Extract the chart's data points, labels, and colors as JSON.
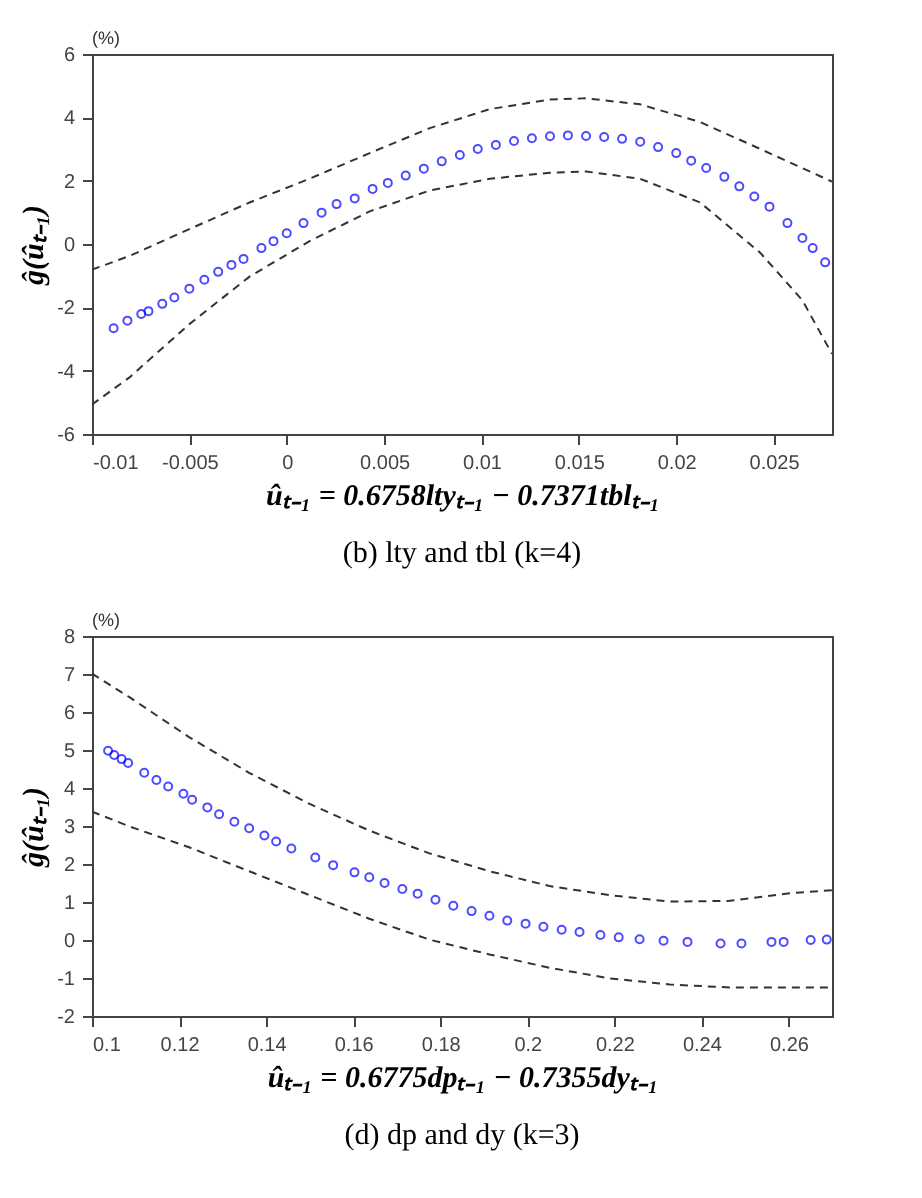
{
  "chart_data": [
    {
      "type": "scatter",
      "title": "(b) lty and tbl (k=4)",
      "xlabel": "ûₜ₋₁ = 0.6758ltyₜ₋₁ − 0.7371tblₜ₋₁",
      "ylabel": "ĝ(ûₜ₋₁)",
      "annotations": [
        "(%)"
      ],
      "xlim": [
        -0.01,
        0.028
      ],
      "xticks": [
        -0.01,
        -0.005,
        0,
        0.005,
        0.01,
        0.015,
        0.02,
        0.025
      ],
      "ylim": [
        -6,
        6
      ],
      "yticks": [
        -6,
        -4,
        -2,
        0,
        2,
        4,
        6
      ],
      "grid": false,
      "legend": false,
      "series": [
        {
          "marker": "circle",
          "color": "#0000ff",
          "x": [
            -0.00889,
            -0.00818,
            -0.00747,
            -0.0071,
            -0.00639,
            -0.00577,
            -0.005,
            -0.00423,
            -0.00352,
            -0.00284,
            -0.00222,
            -0.0013,
            -0.00068,
            0,
            0.00086,
            0.00179,
            0.00256,
            0.00349,
            0.00441,
            0.00519,
            0.00611,
            0.00704,
            0.00796,
            0.00889,
            0.00981,
            0.01074,
            0.01167,
            0.01259,
            0.01352,
            0.01444,
            0.01537,
            0.0163,
            0.01722,
            0.01815,
            0.01907,
            0.02,
            0.02077,
            0.02154,
            0.02247,
            0.02324,
            0.02401,
            0.02479,
            0.02571,
            0.02648,
            0.02701,
            0.02765
          ],
          "values": [
            -2.66,
            -2.42,
            -2.21,
            -2.12,
            -1.89,
            -1.69,
            -1.41,
            -1.13,
            -0.88,
            -0.66,
            -0.47,
            -0.13,
            0.09,
            0.34,
            0.66,
            0.99,
            1.26,
            1.44,
            1.74,
            1.93,
            2.16,
            2.38,
            2.61,
            2.81,
            3.0,
            3.13,
            3.25,
            3.34,
            3.4,
            3.43,
            3.41,
            3.38,
            3.32,
            3.23,
            3.06,
            2.87,
            2.63,
            2.4,
            2.12,
            1.82,
            1.5,
            1.18,
            0.66,
            0.19,
            -0.13,
            -0.58
          ]
        },
        {
          "type": "line",
          "line_style": "dashed",
          "color": "#333333",
          "x": [
            -0.01,
            -0.00809,
            -0.005,
            -0.00191,
            0.00117,
            0.00426,
            0.00735,
            0.01043,
            0.01352,
            0.01537,
            0.01815,
            0.02123,
            0.02432,
            0.028
          ],
          "values": [
            -0.81,
            -0.38,
            0.47,
            1.31,
            2.06,
            2.87,
            3.66,
            4.26,
            4.56,
            4.6,
            4.41,
            3.85,
            3.0,
            1.97
          ]
        },
        {
          "type": "line",
          "line_style": "dashed",
          "color": "#333333",
          "x": [
            -0.01,
            -0.00809,
            -0.005,
            -0.00191,
            0.00117,
            0.00426,
            0.00735,
            0.01043,
            0.01352,
            0.01537,
            0.01815,
            0.02123,
            0.02432,
            0.02648,
            0.028
          ],
          "values": [
            -5.07,
            -4.22,
            -2.53,
            -1.03,
            0.09,
            1.03,
            1.69,
            2.06,
            2.25,
            2.29,
            2.06,
            1.31,
            -0.28,
            -1.78,
            -3.47
          ]
        }
      ]
    },
    {
      "type": "scatter",
      "title": "(d) dp and dy (k=3)",
      "xlabel": "ûₜ₋₁ = 0.6775dpₜ₋₁ − 0.7355dyₜ₋₁",
      "ylabel": "ĝ(ûₜ₋₁)",
      "annotations": [
        "(%)"
      ],
      "xlim": [
        0.1,
        0.27
      ],
      "xticks": [
        0.1,
        0.12,
        0.14,
        0.16,
        0.18,
        0.2,
        0.22,
        0.24,
        0.26
      ],
      "ylim": [
        -2,
        8
      ],
      "yticks": [
        -2,
        -1,
        0,
        1,
        2,
        3,
        4,
        5,
        6,
        7,
        8
      ],
      "grid": false,
      "legend": false,
      "series": [
        {
          "marker": "circle",
          "color": "#0000ff",
          "x": [
            0.1037,
            0.1051,
            0.1068,
            0.1083,
            0.112,
            0.1148,
            0.1175,
            0.121,
            0.123,
            0.1265,
            0.1292,
            0.1327,
            0.1361,
            0.1396,
            0.1423,
            0.1458,
            0.1513,
            0.1554,
            0.1603,
            0.1637,
            0.1672,
            0.1713,
            0.1748,
            0.1789,
            0.183,
            0.1872,
            0.1913,
            0.1954,
            0.1996,
            0.2037,
            0.2079,
            0.212,
            0.2168,
            0.221,
            0.2258,
            0.2313,
            0.2368,
            0.2444,
            0.2492,
            0.2561,
            0.2589,
            0.2651,
            0.2688
          ],
          "values": [
            4.98,
            4.87,
            4.76,
            4.66,
            4.4,
            4.21,
            4.04,
            3.85,
            3.69,
            3.49,
            3.31,
            3.11,
            2.94,
            2.75,
            2.59,
            2.41,
            2.17,
            1.97,
            1.78,
            1.65,
            1.5,
            1.34,
            1.22,
            1.06,
            0.9,
            0.76,
            0.64,
            0.51,
            0.43,
            0.35,
            0.27,
            0.21,
            0.13,
            0.07,
            0.02,
            -0.02,
            -0.05,
            -0.09,
            -0.09,
            -0.05,
            -0.05,
            0.0,
            0.01
          ]
        },
        {
          "type": "line",
          "line_style": "dashed",
          "color": "#333333",
          "x": [
            0.1,
            0.1086,
            0.1223,
            0.1361,
            0.15,
            0.1637,
            0.1775,
            0.1913,
            0.2051,
            0.2189,
            0.2327,
            0.2465,
            0.2603,
            0.27
          ],
          "values": [
            7.01,
            6.39,
            5.34,
            4.4,
            3.58,
            2.88,
            2.28,
            1.81,
            1.42,
            1.18,
            1.01,
            1.03,
            1.23,
            1.31
          ]
        },
        {
          "type": "line",
          "line_style": "dashed",
          "color": "#333333",
          "x": [
            0.1,
            0.1086,
            0.1223,
            0.1361,
            0.15,
            0.1637,
            0.1775,
            0.1913,
            0.2051,
            0.2189,
            0.2327,
            0.2465,
            0.2603,
            0.27
          ],
          "values": [
            3.38,
            2.99,
            2.44,
            1.81,
            1.18,
            0.56,
            0.01,
            -0.38,
            -0.73,
            -1.01,
            -1.17,
            -1.25,
            -1.25,
            -1.25
          ]
        }
      ]
    }
  ]
}
